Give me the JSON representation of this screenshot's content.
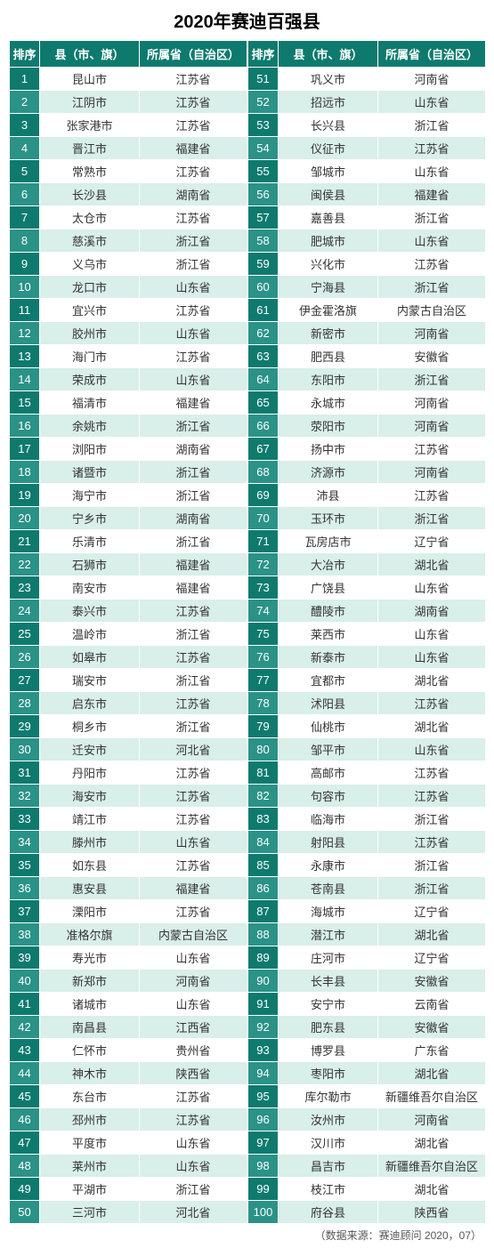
{
  "title": "2020年赛迪百强县",
  "footer": "（数据来源：赛迪顾问  2020，07）",
  "colors": {
    "header_bg": "#0e7a6e",
    "rank_odd": "#0e7a6e",
    "rank_even": "#2a9286",
    "row_odd": "#ffffff",
    "row_even": "#d9efe9",
    "border": "#ffffff"
  },
  "columns": [
    "排序",
    "县（市、旗）",
    "所属省（自治区）"
  ],
  "rows": [
    [
      1,
      "昆山市",
      "江苏省"
    ],
    [
      2,
      "江阴市",
      "江苏省"
    ],
    [
      3,
      "张家港市",
      "江苏省"
    ],
    [
      4,
      "晋江市",
      "福建省"
    ],
    [
      5,
      "常熟市",
      "江苏省"
    ],
    [
      6,
      "长沙县",
      "湖南省"
    ],
    [
      7,
      "太仓市",
      "江苏省"
    ],
    [
      8,
      "慈溪市",
      "浙江省"
    ],
    [
      9,
      "义乌市",
      "浙江省"
    ],
    [
      10,
      "龙口市",
      "山东省"
    ],
    [
      11,
      "宜兴市",
      "江苏省"
    ],
    [
      12,
      "胶州市",
      "山东省"
    ],
    [
      13,
      "海门市",
      "江苏省"
    ],
    [
      14,
      "荣成市",
      "山东省"
    ],
    [
      15,
      "福清市",
      "福建省"
    ],
    [
      16,
      "余姚市",
      "浙江省"
    ],
    [
      17,
      "浏阳市",
      "湖南省"
    ],
    [
      18,
      "诸暨市",
      "浙江省"
    ],
    [
      19,
      "海宁市",
      "浙江省"
    ],
    [
      20,
      "宁乡市",
      "湖南省"
    ],
    [
      21,
      "乐清市",
      "浙江省"
    ],
    [
      22,
      "石狮市",
      "福建省"
    ],
    [
      23,
      "南安市",
      "福建省"
    ],
    [
      24,
      "泰兴市",
      "江苏省"
    ],
    [
      25,
      "温岭市",
      "浙江省"
    ],
    [
      26,
      "如皋市",
      "江苏省"
    ],
    [
      27,
      "瑞安市",
      "浙江省"
    ],
    [
      28,
      "启东市",
      "江苏省"
    ],
    [
      29,
      "桐乡市",
      "浙江省"
    ],
    [
      30,
      "迁安市",
      "河北省"
    ],
    [
      31,
      "丹阳市",
      "江苏省"
    ],
    [
      32,
      "海安市",
      "江苏省"
    ],
    [
      33,
      "靖江市",
      "江苏省"
    ],
    [
      34,
      "滕州市",
      "山东省"
    ],
    [
      35,
      "如东县",
      "江苏省"
    ],
    [
      36,
      "惠安县",
      "福建省"
    ],
    [
      37,
      "溧阳市",
      "江苏省"
    ],
    [
      38,
      "准格尔旗",
      "内蒙古自治区"
    ],
    [
      39,
      "寿光市",
      "山东省"
    ],
    [
      40,
      "新郑市",
      "河南省"
    ],
    [
      41,
      "诸城市",
      "山东省"
    ],
    [
      42,
      "南昌县",
      "江西省"
    ],
    [
      43,
      "仁怀市",
      "贵州省"
    ],
    [
      44,
      "神木市",
      "陕西省"
    ],
    [
      45,
      "东台市",
      "江苏省"
    ],
    [
      46,
      "邳州市",
      "江苏省"
    ],
    [
      47,
      "平度市",
      "山东省"
    ],
    [
      48,
      "莱州市",
      "山东省"
    ],
    [
      49,
      "平湖市",
      "浙江省"
    ],
    [
      50,
      "三河市",
      "河北省"
    ],
    [
      51,
      "巩义市",
      "河南省"
    ],
    [
      52,
      "招远市",
      "山东省"
    ],
    [
      53,
      "长兴县",
      "浙江省"
    ],
    [
      54,
      "仪征市",
      "江苏省"
    ],
    [
      55,
      "邹城市",
      "山东省"
    ],
    [
      56,
      "闽侯县",
      "福建省"
    ],
    [
      57,
      "嘉善县",
      "浙江省"
    ],
    [
      58,
      "肥城市",
      "山东省"
    ],
    [
      59,
      "兴化市",
      "江苏省"
    ],
    [
      60,
      "宁海县",
      "浙江省"
    ],
    [
      61,
      "伊金霍洛旗",
      "内蒙古自治区"
    ],
    [
      62,
      "新密市",
      "河南省"
    ],
    [
      63,
      "肥西县",
      "安徽省"
    ],
    [
      64,
      "东阳市",
      "浙江省"
    ],
    [
      65,
      "永城市",
      "河南省"
    ],
    [
      66,
      "荥阳市",
      "河南省"
    ],
    [
      67,
      "扬中市",
      "江苏省"
    ],
    [
      68,
      "济源市",
      "河南省"
    ],
    [
      69,
      "沛县",
      "江苏省"
    ],
    [
      70,
      "玉环市",
      "浙江省"
    ],
    [
      71,
      "瓦房店市",
      "辽宁省"
    ],
    [
      72,
      "大冶市",
      "湖北省"
    ],
    [
      73,
      "广饶县",
      "山东省"
    ],
    [
      74,
      "醴陵市",
      "湖南省"
    ],
    [
      75,
      "莱西市",
      "山东省"
    ],
    [
      76,
      "新泰市",
      "山东省"
    ],
    [
      77,
      "宜都市",
      "湖北省"
    ],
    [
      78,
      "沭阳县",
      "江苏省"
    ],
    [
      79,
      "仙桃市",
      "湖北省"
    ],
    [
      80,
      "邹平市",
      "山东省"
    ],
    [
      81,
      "高邮市",
      "江苏省"
    ],
    [
      82,
      "句容市",
      "江苏省"
    ],
    [
      83,
      "临海市",
      "浙江省"
    ],
    [
      84,
      "射阳县",
      "江苏省"
    ],
    [
      85,
      "永康市",
      "浙江省"
    ],
    [
      86,
      "苍南县",
      "浙江省"
    ],
    [
      87,
      "海城市",
      "辽宁省"
    ],
    [
      88,
      "潜江市",
      "湖北省"
    ],
    [
      89,
      "庄河市",
      "辽宁省"
    ],
    [
      90,
      "长丰县",
      "安徽省"
    ],
    [
      91,
      "安宁市",
      "云南省"
    ],
    [
      92,
      "肥东县",
      "安徽省"
    ],
    [
      93,
      "博罗县",
      "广东省"
    ],
    [
      94,
      "枣阳市",
      "湖北省"
    ],
    [
      95,
      "库尔勒市",
      "新疆维吾尔自治区"
    ],
    [
      96,
      "汝州市",
      "河南省"
    ],
    [
      97,
      "汉川市",
      "湖北省"
    ],
    [
      98,
      "昌吉市",
      "新疆维吾尔自治区"
    ],
    [
      99,
      "枝江市",
      "湖北省"
    ],
    [
      100,
      "府谷县",
      "陕西省"
    ]
  ]
}
